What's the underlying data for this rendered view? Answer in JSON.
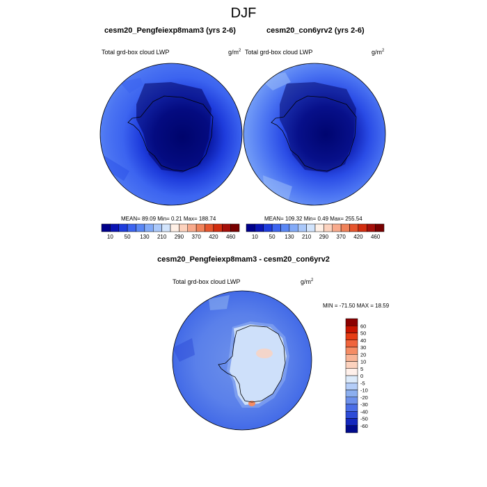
{
  "figure": {
    "title": "DJF"
  },
  "panels": [
    {
      "title": "cesm20_Pengfeiexp8mam3 (yrs 2-6)",
      "variable": "Total grd-box cloud LWP",
      "units": "g/m",
      "units_exp": "2",
      "stats": "MEAN=  89.09  Min=   0.21  Max= 188.74"
    },
    {
      "title": "cesm20_con6yrv2 (yrs 2-6)",
      "variable": "Total grd-box cloud LWP",
      "units": "g/m",
      "units_exp": "2",
      "stats": "MEAN= 109.32  Min=   0.49  Max= 255.54"
    },
    {
      "title": "cesm20_Pengfeiexp8mam3 - cesm20_con6yrv2",
      "variable": "Total grd-box cloud LWP",
      "units": "g/m",
      "units_exp": "2",
      "stats": "MIN = -71.50 MAX =  18.59"
    }
  ],
  "chart_data": [
    {
      "type": "heatmap",
      "projection": "polar-stereographic (south pole)",
      "title": "cesm20_Pengfeiexp8mam3 (yrs 2-6)",
      "variable": "Total grd-box cloud LWP",
      "units": "g/m2",
      "stats": {
        "mean": 89.09,
        "min": 0.21,
        "max": 188.74
      },
      "colorbar": {
        "orientation": "horizontal",
        "levels": [
          10,
          50,
          130,
          210,
          290,
          370,
          420,
          460
        ],
        "colors": [
          "#00008a",
          "#0a14b4",
          "#1e3cdc",
          "#3c64f0",
          "#5a87f5",
          "#82aaf8",
          "#aac8fa",
          "#d2e4fc",
          "#fff0e6",
          "#fcd2be",
          "#f8aa8c",
          "#f0825a",
          "#e6552d",
          "#d22d0f",
          "#a50f0a",
          "#780000"
        ]
      }
    },
    {
      "type": "heatmap",
      "projection": "polar-stereographic (south pole)",
      "title": "cesm20_con6yrv2 (yrs 2-6)",
      "variable": "Total grd-box cloud LWP",
      "units": "g/m2",
      "stats": {
        "mean": 109.32,
        "min": 0.49,
        "max": 255.54
      },
      "colorbar": {
        "orientation": "horizontal",
        "levels": [
          10,
          50,
          130,
          210,
          290,
          370,
          420,
          460
        ],
        "colors": [
          "#00008a",
          "#0a14b4",
          "#1e3cdc",
          "#3c64f0",
          "#5a87f5",
          "#82aaf8",
          "#aac8fa",
          "#d2e4fc",
          "#fff0e6",
          "#fcd2be",
          "#f8aa8c",
          "#f0825a",
          "#e6552d",
          "#d22d0f",
          "#a50f0a",
          "#780000"
        ]
      }
    },
    {
      "type": "heatmap",
      "projection": "polar-stereographic (south pole)",
      "title": "cesm20_Pengfeiexp8mam3 - cesm20_con6yrv2",
      "variable": "Total grd-box cloud LWP",
      "units": "g/m2",
      "stats": {
        "min": -71.5,
        "max": 18.59
      },
      "colorbar": {
        "orientation": "vertical",
        "levels": [
          60,
          50,
          40,
          30,
          20,
          10,
          5,
          0,
          -5,
          -10,
          -20,
          -30,
          -40,
          -50,
          -60
        ],
        "colors": [
          "#8b0000",
          "#c81400",
          "#e63c14",
          "#f0643c",
          "#f58c64",
          "#f8b496",
          "#fcd2be",
          "#fff0ea",
          "#dceafa",
          "#b4cdf8",
          "#8cafef",
          "#6e91eb",
          "#4b6ee6",
          "#2d4bd7",
          "#1428be",
          "#000a8c"
        ]
      }
    }
  ]
}
